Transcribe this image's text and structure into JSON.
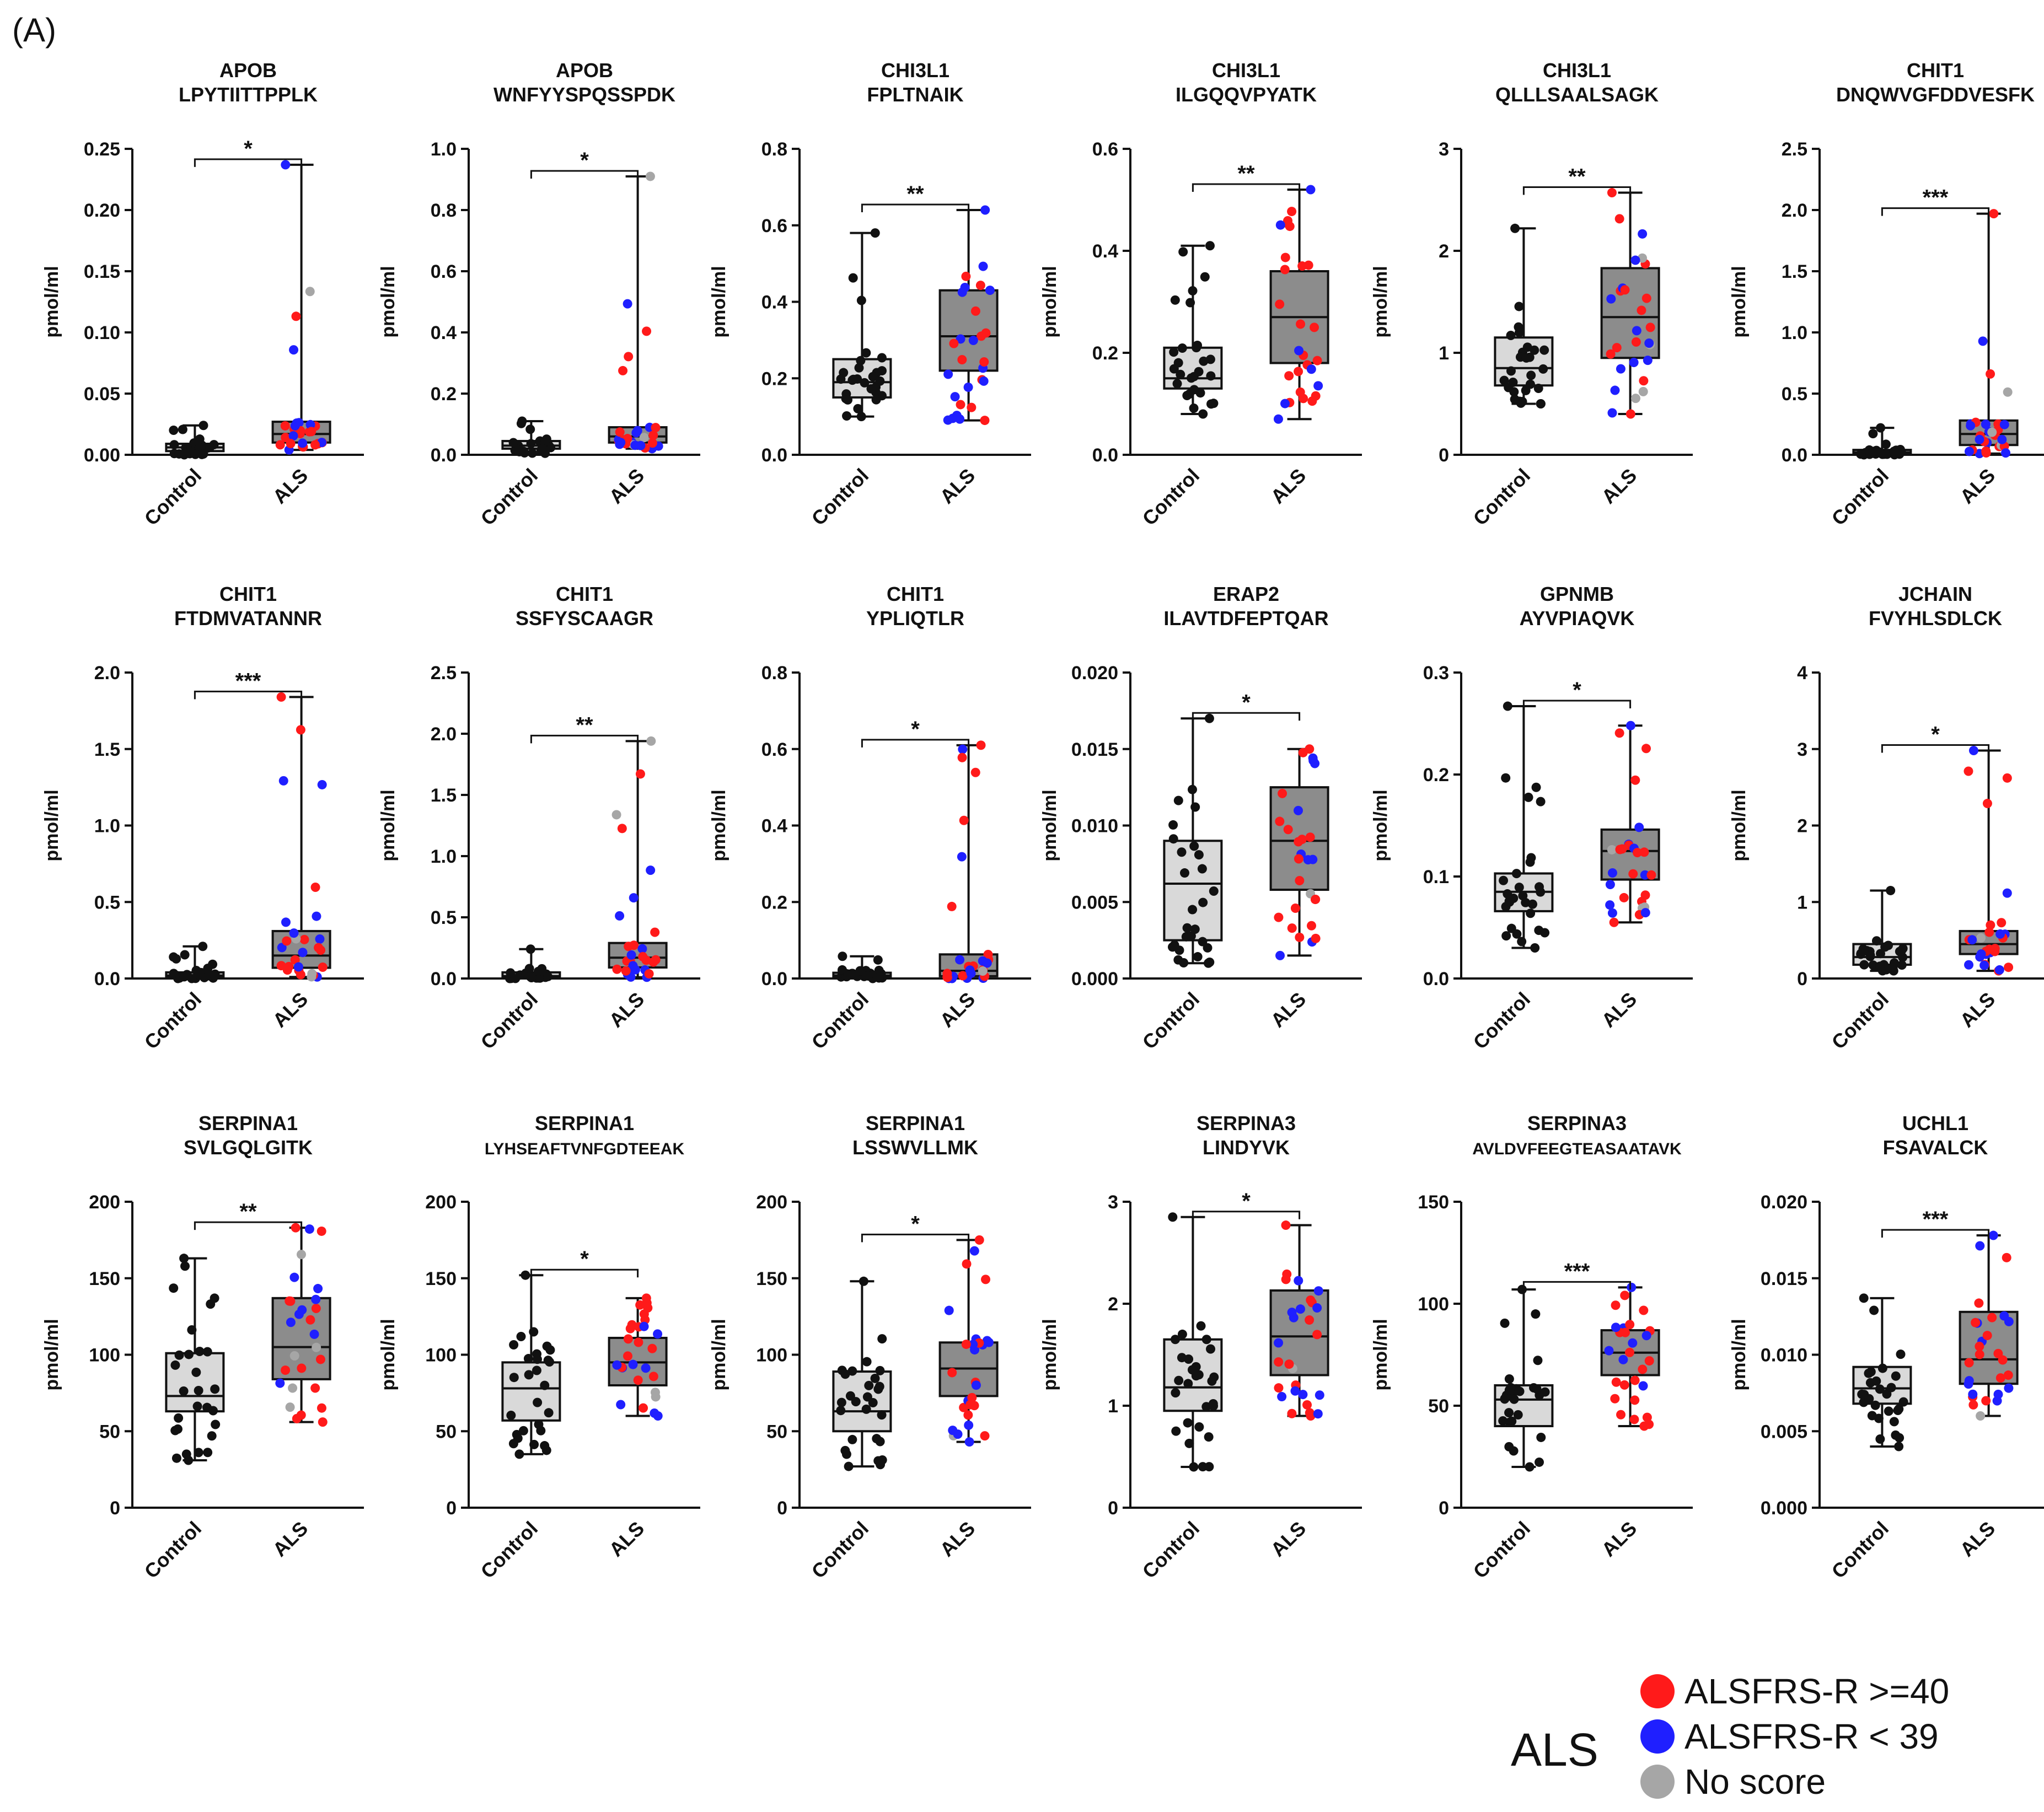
{
  "figure_label": "(A)",
  "colors": {
    "control_box": "#d9d9d9",
    "als_box": "#8c8c8c",
    "control_point": "#111111",
    "high_score": "#ff1a1a",
    "low_score": "#1f1fff",
    "no_score": "#a6a6a6"
  },
  "legend": {
    "group": "ALS",
    "items": [
      {
        "label": "ALSFRS-R >=40",
        "color": "#ff1a1a"
      },
      {
        "label": "ALSFRS-R <  39",
        "color": "#1f1fff"
      },
      {
        "label": "No score",
        "color": "#a6a6a6"
      }
    ]
  },
  "chart_data": [
    {
      "type": "box",
      "title": [
        "APOB",
        "LPYTIITTPPLK"
      ],
      "ylabel": "pmol/ml",
      "ylim": [
        0,
        0.25
      ],
      "yticks": [
        "0.00",
        "0.05",
        "0.10",
        "0.15",
        "0.20",
        "0.25"
      ],
      "categories": [
        "Control",
        "ALS"
      ],
      "significance": "*",
      "series": [
        {
          "name": "Control",
          "min": 0.0,
          "q1": 0.003,
          "median": 0.006,
          "q3": 0.009,
          "max": 0.024
        },
        {
          "name": "ALS",
          "min": 0.004,
          "q1": 0.01,
          "median": 0.017,
          "q3": 0.027,
          "max": 0.237
        }
      ]
    },
    {
      "type": "box",
      "title": [
        "APOB",
        "WNFYYSPQSSPDK"
      ],
      "ylabel": "pmol/ml",
      "ylim": [
        0,
        1.0
      ],
      "yticks": [
        "0.0",
        "0.2",
        "0.4",
        "0.6",
        "0.8",
        "1.0"
      ],
      "categories": [
        "Control",
        "ALS"
      ],
      "significance": "*",
      "series": [
        {
          "name": "Control",
          "min": 0.005,
          "q1": 0.02,
          "median": 0.03,
          "q3": 0.045,
          "max": 0.11
        },
        {
          "name": "ALS",
          "min": 0.02,
          "q1": 0.04,
          "median": 0.06,
          "q3": 0.09,
          "max": 0.91
        }
      ]
    },
    {
      "type": "box",
      "title": [
        "CHI3L1",
        "FPLTNAIK"
      ],
      "ylabel": "pmol/ml",
      "ylim": [
        0,
        0.8
      ],
      "yticks": [
        "0.0",
        "0.2",
        "0.4",
        "0.6",
        "0.8"
      ],
      "categories": [
        "Control",
        "ALS"
      ],
      "significance": "**",
      "series": [
        {
          "name": "Control",
          "min": 0.1,
          "q1": 0.15,
          "median": 0.19,
          "q3": 0.25,
          "max": 0.58
        },
        {
          "name": "ALS",
          "min": 0.09,
          "q1": 0.22,
          "median": 0.31,
          "q3": 0.43,
          "max": 0.64
        }
      ]
    },
    {
      "type": "box",
      "title": [
        "CHI3L1",
        "ILGQQVPYATK"
      ],
      "ylabel": "pmol/ml",
      "ylim": [
        0,
        0.6
      ],
      "yticks": [
        "0.0",
        "0.2",
        "0.4",
        "0.6"
      ],
      "categories": [
        "Control",
        "ALS"
      ],
      "significance": "**",
      "series": [
        {
          "name": "Control",
          "min": 0.08,
          "q1": 0.13,
          "median": 0.15,
          "q3": 0.21,
          "max": 0.41
        },
        {
          "name": "ALS",
          "min": 0.07,
          "q1": 0.18,
          "median": 0.27,
          "q3": 0.36,
          "max": 0.52
        }
      ]
    },
    {
      "type": "box",
      "title": [
        "CHI3L1",
        "QLLLSAALSAGK"
      ],
      "ylabel": "pmol/ml",
      "ylim": [
        0,
        3
      ],
      "yticks": [
        "0",
        "1",
        "2",
        "3"
      ],
      "categories": [
        "Control",
        "ALS"
      ],
      "significance": "**",
      "series": [
        {
          "name": "Control",
          "min": 0.5,
          "q1": 0.68,
          "median": 0.85,
          "q3": 1.15,
          "max": 2.22
        },
        {
          "name": "ALS",
          "min": 0.4,
          "q1": 0.95,
          "median": 1.35,
          "q3": 1.83,
          "max": 2.57
        }
      ]
    },
    {
      "type": "box",
      "title": [
        "CHIT1",
        "DNQWVGFDDVESFK"
      ],
      "ylabel": "pmol/ml",
      "ylim": [
        0,
        2.5
      ],
      "yticks": [
        "0.0",
        "0.5",
        "1.0",
        "1.5",
        "2.0",
        "2.5"
      ],
      "categories": [
        "Control",
        "ALS"
      ],
      "significance": "***",
      "series": [
        {
          "name": "Control",
          "min": 0.0,
          "q1": 0.01,
          "median": 0.02,
          "q3": 0.04,
          "max": 0.22
        },
        {
          "name": "ALS",
          "min": 0.01,
          "q1": 0.08,
          "median": 0.17,
          "q3": 0.28,
          "max": 1.97
        }
      ]
    },
    {
      "type": "box",
      "title": [
        "CHIT1",
        "FTDMVATANNR"
      ],
      "ylabel": "pmol/ml",
      "ylim": [
        0,
        2.0
      ],
      "yticks": [
        "0.0",
        "0.5",
        "1.0",
        "1.5",
        "2.0"
      ],
      "categories": [
        "Control",
        "ALS"
      ],
      "significance": "***",
      "series": [
        {
          "name": "Control",
          "min": 0.0,
          "q1": 0.01,
          "median": 0.02,
          "q3": 0.04,
          "max": 0.21
        },
        {
          "name": "ALS",
          "min": 0.01,
          "q1": 0.07,
          "median": 0.15,
          "q3": 0.31,
          "max": 1.84
        }
      ]
    },
    {
      "type": "box",
      "title": [
        "CHIT1",
        "SSFYSCAAGR"
      ],
      "ylabel": "pmol/ml",
      "ylim": [
        0,
        2.5
      ],
      "yticks": [
        "0.0",
        "0.5",
        "1.0",
        "1.5",
        "2.0",
        "2.5"
      ],
      "categories": [
        "Control",
        "ALS"
      ],
      "significance": "**",
      "series": [
        {
          "name": "Control",
          "min": 0.0,
          "q1": 0.01,
          "median": 0.02,
          "q3": 0.05,
          "max": 0.24
        },
        {
          "name": "ALS",
          "min": 0.01,
          "q1": 0.09,
          "median": 0.17,
          "q3": 0.29,
          "max": 1.94
        }
      ]
    },
    {
      "type": "box",
      "title": [
        "CHIT1",
        "YPLIQTLR"
      ],
      "ylabel": "pmol/ml",
      "ylim": [
        0,
        0.8
      ],
      "yticks": [
        "0.0",
        "0.2",
        "0.4",
        "0.6",
        "0.8"
      ],
      "categories": [
        "Control",
        "ALS"
      ],
      "significance": "*",
      "series": [
        {
          "name": "Control",
          "min": 0.0,
          "q1": 0.004,
          "median": 0.008,
          "q3": 0.015,
          "max": 0.058
        },
        {
          "name": "ALS",
          "min": 0.0,
          "q1": 0.006,
          "median": 0.02,
          "q3": 0.063,
          "max": 0.61
        }
      ]
    },
    {
      "type": "box",
      "title": [
        "ERAP2",
        "ILAVTDFEPTQAR"
      ],
      "ylabel": "pmol/ml",
      "ylim": [
        0,
        0.02
      ],
      "yticks": [
        "0.000",
        "0.005",
        "0.010",
        "0.015",
        "0.020"
      ],
      "categories": [
        "Control",
        "ALS"
      ],
      "significance": "*",
      "series": [
        {
          "name": "Control",
          "min": 0.001,
          "q1": 0.0025,
          "median": 0.0062,
          "q3": 0.009,
          "max": 0.017
        },
        {
          "name": "ALS",
          "min": 0.0015,
          "q1": 0.0058,
          "median": 0.009,
          "q3": 0.0125,
          "max": 0.015
        }
      ]
    },
    {
      "type": "box",
      "title": [
        "GPNMB",
        "AYVPIAQVK"
      ],
      "ylabel": "pmol/ml",
      "ylim": [
        0,
        0.3
      ],
      "yticks": [
        "0.0",
        "0.1",
        "0.2",
        "0.3"
      ],
      "categories": [
        "Control",
        "ALS"
      ],
      "significance": "*",
      "series": [
        {
          "name": "Control",
          "min": 0.03,
          "q1": 0.066,
          "median": 0.085,
          "q3": 0.103,
          "max": 0.267
        },
        {
          "name": "ALS",
          "min": 0.055,
          "q1": 0.097,
          "median": 0.125,
          "q3": 0.146,
          "max": 0.248
        }
      ]
    },
    {
      "type": "box",
      "title": [
        "JCHAIN",
        "FVYHLSDLCK"
      ],
      "ylabel": "pmol/ml",
      "ylim": [
        0,
        4
      ],
      "yticks": [
        "0",
        "1",
        "2",
        "3",
        "4"
      ],
      "categories": [
        "Control",
        "ALS"
      ],
      "significance": "*",
      "series": [
        {
          "name": "Control",
          "min": 0.1,
          "q1": 0.18,
          "median": 0.28,
          "q3": 0.45,
          "max": 1.15
        },
        {
          "name": "ALS",
          "min": 0.1,
          "q1": 0.32,
          "median": 0.45,
          "q3": 0.62,
          "max": 2.98
        }
      ]
    },
    {
      "type": "box",
      "title": [
        "SERPINA1",
        "SVLGQLGITK"
      ],
      "ylabel": "pmol/ml",
      "ylim": [
        0,
        200
      ],
      "yticks": [
        "0",
        "50",
        "100",
        "150",
        "200"
      ],
      "categories": [
        "Control",
        "ALS"
      ],
      "significance": "**",
      "series": [
        {
          "name": "Control",
          "min": 31,
          "q1": 63,
          "median": 73,
          "q3": 101,
          "max": 163
        },
        {
          "name": "ALS",
          "min": 56,
          "q1": 84,
          "median": 105,
          "q3": 137,
          "max": 183
        }
      ]
    },
    {
      "type": "box",
      "title": [
        "SERPINA1",
        "LYHSEAFTVNFGDTEEAK"
      ],
      "ylabel": "pmol/ml",
      "ylim": [
        0,
        200
      ],
      "yticks": [
        "0",
        "50",
        "100",
        "150",
        "200"
      ],
      "categories": [
        "Control",
        "ALS"
      ],
      "significance": "*",
      "series": [
        {
          "name": "Control",
          "min": 35,
          "q1": 57,
          "median": 78,
          "q3": 95,
          "max": 152
        },
        {
          "name": "ALS",
          "min": 60,
          "q1": 80,
          "median": 95,
          "q3": 111,
          "max": 137
        }
      ]
    },
    {
      "type": "box",
      "title": [
        "SERPINA1",
        "LSSWVLLMK"
      ],
      "ylabel": "pmol/ml",
      "ylim": [
        0,
        200
      ],
      "yticks": [
        "0",
        "50",
        "100",
        "150",
        "200"
      ],
      "categories": [
        "Control",
        "ALS"
      ],
      "significance": "*",
      "series": [
        {
          "name": "Control",
          "min": 27,
          "q1": 50,
          "median": 63,
          "q3": 89,
          "max": 148
        },
        {
          "name": "ALS",
          "min": 43,
          "q1": 73,
          "median": 91,
          "q3": 108,
          "max": 175
        }
      ]
    },
    {
      "type": "box",
      "title": [
        "SERPINA3",
        "LINDYVK"
      ],
      "ylabel": "pmol/ml",
      "ylim": [
        0,
        3
      ],
      "yticks": [
        "0",
        "1",
        "2",
        "3"
      ],
      "categories": [
        "Control",
        "ALS"
      ],
      "significance": "*",
      "series": [
        {
          "name": "Control",
          "min": 0.4,
          "q1": 0.95,
          "median": 1.18,
          "q3": 1.65,
          "max": 2.85
        },
        {
          "name": "ALS",
          "min": 0.9,
          "q1": 1.3,
          "median": 1.68,
          "q3": 2.13,
          "max": 2.77
        }
      ]
    },
    {
      "type": "box",
      "title": [
        "SERPINA3",
        "AVLDVFEEGTEASAATAVK"
      ],
      "ylabel": "pmol/ml",
      "ylim": [
        0,
        150
      ],
      "yticks": [
        "0",
        "50",
        "100",
        "150"
      ],
      "categories": [
        "Control",
        "ALS"
      ],
      "significance": "***",
      "series": [
        {
          "name": "Control",
          "min": 20,
          "q1": 40,
          "median": 53,
          "q3": 60,
          "max": 107
        },
        {
          "name": "ALS",
          "min": 40,
          "q1": 65,
          "median": 76,
          "q3": 87,
          "max": 108
        }
      ]
    },
    {
      "type": "box",
      "title": [
        "UCHL1",
        "FSAVALCK"
      ],
      "ylabel": "pmol/ml",
      "ylim": [
        0,
        0.02
      ],
      "yticks": [
        "0.000",
        "0.005",
        "0.010",
        "0.015",
        "0.020"
      ],
      "categories": [
        "Control",
        "ALS"
      ],
      "significance": "***",
      "series": [
        {
          "name": "Control",
          "min": 0.004,
          "q1": 0.0068,
          "median": 0.0078,
          "q3": 0.0092,
          "max": 0.0137
        },
        {
          "name": "ALS",
          "min": 0.006,
          "q1": 0.0081,
          "median": 0.0097,
          "q3": 0.0128,
          "max": 0.0178
        }
      ]
    }
  ]
}
